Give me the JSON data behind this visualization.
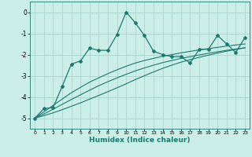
{
  "xlabel": "Humidex (Indice chaleur)",
  "bg_color": "#cceee8",
  "line_color": "#1a7a6e",
  "grid_color": "#aad4ce",
  "x_data": [
    0,
    1,
    2,
    3,
    4,
    5,
    6,
    7,
    8,
    9,
    10,
    11,
    12,
    13,
    14,
    15,
    16,
    17,
    18,
    19,
    20,
    21,
    22,
    23
  ],
  "y_main": [
    -5.0,
    -4.55,
    -4.5,
    -3.5,
    -2.45,
    -2.3,
    -1.7,
    -1.8,
    -1.8,
    -1.05,
    0.0,
    -0.5,
    -1.1,
    -1.85,
    -2.0,
    -2.1,
    -2.1,
    -2.4,
    -1.75,
    -1.75,
    -1.1,
    -1.5,
    -1.9,
    -1.2
  ],
  "y_line1": [
    -5.0,
    -4.7,
    -4.4,
    -4.1,
    -3.8,
    -3.55,
    -3.3,
    -3.1,
    -2.9,
    -2.72,
    -2.55,
    -2.4,
    -2.28,
    -2.18,
    -2.08,
    -2.0,
    -1.92,
    -1.85,
    -1.78,
    -1.72,
    -1.66,
    -1.6,
    -1.55,
    -1.5
  ],
  "y_line2": [
    -5.0,
    -4.8,
    -4.58,
    -4.35,
    -4.12,
    -3.9,
    -3.68,
    -3.47,
    -3.28,
    -3.1,
    -2.93,
    -2.77,
    -2.63,
    -2.5,
    -2.38,
    -2.28,
    -2.18,
    -2.1,
    -2.02,
    -1.94,
    -1.87,
    -1.8,
    -1.74,
    -1.68
  ],
  "y_line3": [
    -5.0,
    -4.88,
    -4.75,
    -4.6,
    -4.44,
    -4.28,
    -4.1,
    -3.93,
    -3.75,
    -3.57,
    -3.38,
    -3.18,
    -3.0,
    -2.82,
    -2.65,
    -2.5,
    -2.36,
    -2.24,
    -2.13,
    -2.03,
    -1.93,
    -1.84,
    -1.76,
    -1.68
  ],
  "ylim": [
    -5.5,
    0.5
  ],
  "xlim": [
    -0.5,
    23.5
  ],
  "yticks": [
    0,
    -1,
    -2,
    -3,
    -4,
    -5
  ],
  "xticks": [
    0,
    1,
    2,
    3,
    4,
    5,
    6,
    7,
    8,
    9,
    10,
    11,
    12,
    13,
    14,
    15,
    16,
    17,
    18,
    19,
    20,
    21,
    22,
    23
  ]
}
